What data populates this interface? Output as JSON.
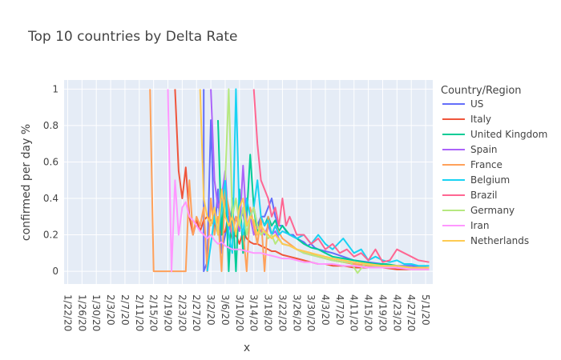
{
  "chart_data": {
    "type": "line",
    "title": "Top 10 countries by Delta Rate",
    "xlabel": "x",
    "ylabel": "confirmed per day %",
    "ylim": [
      -0.07,
      1.05
    ],
    "y_ticks": [
      "0",
      "0.2",
      "0.4",
      "0.6",
      "0.8",
      "1"
    ],
    "y_tick_values": [
      0,
      0.2,
      0.4,
      0.6,
      0.8,
      1
    ],
    "x_ticks": [
      "1/22/20",
      "1/26/20",
      "1/30/20",
      "2/3/20",
      "2/7/20",
      "2/11/20",
      "2/15/20",
      "2/19/20",
      "2/23/20",
      "2/27/20",
      "3/2/20",
      "3/6/20",
      "3/10/20",
      "3/14/20",
      "3/18/20",
      "3/22/20",
      "3/26/20",
      "3/30/20",
      "4/3/20",
      "4/7/20",
      "4/11/20",
      "4/15/20",
      "4/19/20",
      "4/23/20",
      "4/27/20",
      "5/1/20"
    ],
    "x_tick_days": [
      0,
      4,
      8,
      12,
      16,
      20,
      24,
      28,
      32,
      36,
      40,
      44,
      48,
      52,
      56,
      60,
      64,
      68,
      72,
      76,
      80,
      84,
      88,
      92,
      96,
      100
    ],
    "x_start": "1/22/20",
    "x_end": "5/2/20",
    "grid": true,
    "legend_title": "Country/Region",
    "legend_position": "right",
    "series": [
      {
        "name": "US",
        "color": "#636efa",
        "x": [
          "2/29/20",
          "2/29/20",
          "3/1/20",
          "3/2/20",
          "3/3/20",
          "3/4/20",
          "3/5/20",
          "3/6/20",
          "3/7/20",
          "3/8/20",
          "3/9/20",
          "3/10/20",
          "3/11/20",
          "3/12/20",
          "3/13/20",
          "3/14/20",
          "3/15/20",
          "3/16/20",
          "3/17/20",
          "3/18/20",
          "3/19/20",
          "3/20/20",
          "3/21/20",
          "3/22/20",
          "3/23/20",
          "3/24/20",
          "3/25/20",
          "3/26/20",
          "3/27/20",
          "3/28/20",
          "3/29/20",
          "3/30/20",
          "3/31/20",
          "4/1/20",
          "4/3/20",
          "4/5/20",
          "4/8/20",
          "4/11/20",
          "4/15/20",
          "4/19/20",
          "4/23/20",
          "4/27/20",
          "5/2/20"
        ],
        "y": [
          1,
          0,
          0.05,
          0.83,
          0.2,
          0.45,
          0.1,
          0.2,
          0.35,
          0.25,
          0.3,
          0.28,
          0.32,
          0.2,
          0.3,
          0.35,
          0.25,
          0.3,
          0.3,
          0.35,
          0.4,
          0.3,
          0.25,
          0.25,
          0.22,
          0.2,
          0.2,
          0.18,
          0.17,
          0.16,
          0.14,
          0.15,
          0.13,
          0.12,
          0.11,
          0.1,
          0.08,
          0.06,
          0.05,
          0.04,
          0.03,
          0.03,
          0.02
        ]
      },
      {
        "name": "Italy",
        "color": "#ef553b",
        "x": [
          "2/21/20",
          "2/22/20",
          "2/23/20",
          "2/24/20",
          "2/25/20",
          "2/26/20",
          "2/27/20",
          "2/28/20",
          "2/29/20",
          "3/1/20",
          "3/2/20",
          "3/3/20",
          "3/4/20",
          "3/5/20",
          "3/6/20",
          "3/7/20",
          "3/8/20",
          "3/9/20",
          "3/10/20",
          "3/11/20",
          "3/12/20",
          "3/13/20",
          "3/14/20",
          "3/15/20",
          "3/16/20",
          "3/17/20",
          "3/18/20",
          "3/19/20",
          "3/20/20",
          "3/21/20",
          "3/22/20",
          "3/24/20",
          "3/26/20",
          "3/28/20",
          "3/30/20",
          "4/1/20",
          "4/3/20",
          "4/5/20",
          "4/8/20",
          "4/11/20",
          "4/15/20",
          "4/19/20",
          "4/23/20",
          "4/27/20",
          "5/2/20"
        ],
        "y": [
          1,
          0.55,
          0.4,
          0.57,
          0.3,
          0.2,
          0.28,
          0.22,
          0.28,
          0.3,
          0.28,
          0.25,
          0.24,
          0.2,
          0.22,
          0.3,
          0.18,
          0.2,
          0.15,
          0.22,
          0.18,
          0.16,
          0.15,
          0.15,
          0.14,
          0.13,
          0.12,
          0.11,
          0.11,
          0.1,
          0.09,
          0.08,
          0.07,
          0.06,
          0.05,
          0.04,
          0.04,
          0.03,
          0.03,
          0.02,
          0.02,
          0.02,
          0.01,
          0.01,
          0.01
        ]
      },
      {
        "name": "United Kingdom",
        "color": "#00cc96",
        "x": [
          "3/4/20",
          "3/5/20",
          "3/6/20",
          "3/7/20",
          "3/8/20",
          "3/9/20",
          "3/10/20",
          "3/11/20",
          "3/12/20",
          "3/13/20",
          "3/14/20",
          "3/15/20",
          "3/16/20",
          "3/17/20",
          "3/18/20",
          "3/19/20",
          "3/20/20",
          "3/21/20",
          "3/22/20",
          "3/24/20",
          "3/26/20",
          "3/28/20",
          "3/30/20",
          "4/1/20",
          "4/3/20",
          "4/5/20",
          "4/8/20",
          "4/11/20",
          "4/14/20",
          "4/17/20",
          "4/20/20",
          "4/23/20",
          "4/27/20",
          "5/2/20"
        ],
        "y": [
          0.83,
          0.2,
          0.5,
          0,
          0.4,
          0,
          0.45,
          0.1,
          0.3,
          0.64,
          0.35,
          0.2,
          0.3,
          0.25,
          0.3,
          0.25,
          0.28,
          0.22,
          0.25,
          0.2,
          0.18,
          0.15,
          0.13,
          0.12,
          0.1,
          0.08,
          0.07,
          0.06,
          0.05,
          0.04,
          0.04,
          0.03,
          0.02,
          0.02
        ]
      },
      {
        "name": "Spain",
        "color": "#ab63fa",
        "x": [
          "3/2/20",
          "3/3/20",
          "3/4/20",
          "3/5/20",
          "3/6/20",
          "3/7/20",
          "3/8/20",
          "3/9/20",
          "3/10/20",
          "3/11/20",
          "3/12/20",
          "3/13/20",
          "3/14/20",
          "3/15/20",
          "3/16/20",
          "3/17/20",
          "3/18/20",
          "3/19/20",
          "3/20/20",
          "3/21/20",
          "3/22/20",
          "3/24/20",
          "3/26/20",
          "3/28/20",
          "3/30/20",
          "4/1/20",
          "4/3/20",
          "4/5/20",
          "4/8/20",
          "4/11/20",
          "4/15/20",
          "4/19/20",
          "4/23/20",
          "4/27/20",
          "5/2/20"
        ],
        "y": [
          1,
          0.5,
          0.35,
          0.4,
          0.55,
          0.25,
          0.2,
          0.3,
          0.22,
          0.58,
          0.25,
          0.3,
          0.2,
          0.25,
          0.22,
          0.2,
          0.25,
          0.2,
          0.22,
          0.18,
          0.15,
          0.14,
          0.12,
          0.1,
          0.09,
          0.08,
          0.07,
          0.06,
          0.05,
          0.04,
          0.03,
          0.03,
          0.02,
          0.02,
          0.02
        ]
      },
      {
        "name": "France",
        "color": "#ffa15a",
        "x": [
          "2/14/20",
          "2/15/20",
          "2/16/20",
          "2/17/20",
          "2/18/20",
          "2/19/20",
          "2/20/20",
          "2/21/20",
          "2/22/20",
          "2/23/20",
          "2/24/20",
          "2/25/20",
          "2/26/20",
          "2/27/20",
          "2/28/20",
          "2/29/20",
          "3/1/20",
          "3/2/20",
          "3/3/20",
          "3/4/20",
          "3/5/20",
          "3/6/20",
          "3/7/20",
          "3/8/20",
          "3/9/20",
          "3/10/20",
          "3/11/20",
          "3/12/20",
          "3/13/20",
          "3/14/20",
          "3/15/20",
          "3/16/20",
          "3/17/20",
          "3/18/20",
          "3/19/20",
          "3/20/20",
          "3/22/20",
          "3/24/20",
          "3/26/20",
          "3/28/20",
          "3/30/20",
          "4/1/20",
          "4/3/20",
          "4/5/20",
          "4/8/20",
          "4/11/20",
          "4/15/20",
          "4/19/20",
          "4/23/20",
          "4/27/20",
          "5/2/20"
        ],
        "y": [
          1,
          0,
          0,
          0,
          0,
          0,
          0,
          0,
          0,
          0,
          0,
          0.5,
          0.2,
          0.3,
          0.25,
          0.35,
          0,
          0.4,
          0.2,
          0.3,
          0,
          0.45,
          0.35,
          0.2,
          0.3,
          0.25,
          0.22,
          0,
          0.35,
          0.25,
          0.15,
          0.3,
          0,
          0.3,
          0.2,
          0.25,
          0.18,
          0.15,
          0.12,
          0.11,
          0.1,
          0.08,
          0.07,
          0.06,
          0.05,
          0.04,
          0.03,
          0.03,
          0.02,
          0.02,
          0.02
        ]
      },
      {
        "name": "Belgium",
        "color": "#19d3f3",
        "x": [
          "3/1/20",
          "3/2/20",
          "3/3/20",
          "3/4/20",
          "3/5/20",
          "3/6/20",
          "3/7/20",
          "3/8/20",
          "3/9/20",
          "3/10/20",
          "3/11/20",
          "3/12/20",
          "3/13/20",
          "3/14/20",
          "3/15/20",
          "3/16/20",
          "3/17/20",
          "3/18/20",
          "3/19/20",
          "3/20/20",
          "3/21/20",
          "3/22/20",
          "3/24/20",
          "3/26/20",
          "3/28/20",
          "3/30/20",
          "4/1/20",
          "4/3/20",
          "4/5/20",
          "4/8/20",
          "4/11/20",
          "4/13/20",
          "4/15/20",
          "4/17/20",
          "4/19/20",
          "4/21/20",
          "4/23/20",
          "4/25/20",
          "4/27/20",
          "4/29/20",
          "5/2/20"
        ],
        "y": [
          0,
          0.15,
          0.3,
          0.2,
          0.35,
          0.5,
          0.2,
          0.1,
          1,
          0.3,
          0.2,
          0.4,
          0.3,
          0.35,
          0.5,
          0.3,
          0.25,
          0.28,
          0.2,
          0.25,
          0.2,
          0.22,
          0.2,
          0.18,
          0.2,
          0.15,
          0.2,
          0.15,
          0.12,
          0.18,
          0.1,
          0.12,
          0.06,
          0.08,
          0.06,
          0.05,
          0.06,
          0.04,
          0.04,
          0.03,
          0.03
        ]
      },
      {
        "name": "Brazil",
        "color": "#ff6692",
        "x": [
          "3/14/20",
          "3/15/20",
          "3/16/20",
          "3/17/20",
          "3/18/20",
          "3/19/20",
          "3/20/20",
          "3/21/20",
          "3/22/20",
          "3/23/20",
          "3/24/20",
          "3/26/20",
          "3/28/20",
          "3/30/20",
          "4/1/20",
          "4/3/20",
          "4/5/20",
          "4/7/20",
          "4/9/20",
          "4/11/20",
          "4/13/20",
          "4/15/20",
          "4/17/20",
          "4/19/20",
          "4/21/20",
          "4/23/20",
          "4/25/20",
          "4/27/20",
          "4/29/20",
          "5/2/20"
        ],
        "y": [
          1,
          0.7,
          0.5,
          0.45,
          0.4,
          0.3,
          0.35,
          0.25,
          0.4,
          0.25,
          0.3,
          0.2,
          0.2,
          0.15,
          0.18,
          0.12,
          0.15,
          0.1,
          0.12,
          0.08,
          0.1,
          0.06,
          0.12,
          0.05,
          0.06,
          0.12,
          0.1,
          0.08,
          0.06,
          0.05
        ]
      },
      {
        "name": "Germany",
        "color": "#b6e880",
        "x": [
          "3/6/20",
          "3/7/20",
          "3/8/20",
          "3/9/20",
          "3/10/20",
          "3/11/20",
          "3/12/20",
          "3/13/20",
          "3/14/20",
          "3/15/20",
          "3/16/20",
          "3/17/20",
          "3/18/20",
          "3/19/20",
          "3/20/20",
          "3/21/20",
          "3/22/20",
          "3/24/20",
          "3/26/20",
          "3/28/20",
          "3/30/20",
          "4/1/20",
          "4/3/20",
          "4/5/20",
          "4/8/20",
          "4/10/20",
          "4/12/20",
          "4/14/20",
          "4/17/20",
          "4/20/20",
          "4/23/20",
          "4/27/20",
          "5/2/20"
        ],
        "y": [
          0.5,
          1,
          0.3,
          0.4,
          0.25,
          0.35,
          0.2,
          0.3,
          0.35,
          0.25,
          0.2,
          0.22,
          0.18,
          0.2,
          0.15,
          0.18,
          0.15,
          0.14,
          0.12,
          0.1,
          0.09,
          0.08,
          0.07,
          0.06,
          0.05,
          0.05,
          -0.01,
          0.04,
          0.03,
          0.03,
          0.02,
          0.02,
          0.02
        ]
      },
      {
        "name": "Iran",
        "color": "#ff97ff",
        "x": [
          "2/19/20",
          "2/20/20",
          "2/21/20",
          "2/22/20",
          "2/23/20",
          "2/24/20",
          "2/25/20",
          "2/26/20",
          "2/27/20",
          "2/28/20",
          "2/29/20",
          "3/1/20",
          "3/2/20",
          "3/3/20",
          "3/4/20",
          "3/5/20",
          "3/6/20",
          "3/7/20",
          "3/8/20",
          "3/10/20",
          "3/12/20",
          "3/14/20",
          "3/16/20",
          "3/18/20",
          "3/20/20",
          "3/22/20",
          "3/24/20",
          "3/26/20",
          "3/28/20",
          "3/30/20",
          "4/1/20",
          "4/3/20",
          "4/5/20",
          "4/8/20",
          "4/11/20",
          "4/15/20",
          "4/19/20",
          "4/23/20",
          "4/27/20",
          "5/2/20"
        ],
        "y": [
          1,
          0,
          0.5,
          0.2,
          0.35,
          0.38,
          0.3,
          0.28,
          0.25,
          0.22,
          0.2,
          0.18,
          0.2,
          0.17,
          0.15,
          0.16,
          0.14,
          0.13,
          0.12,
          0.12,
          0.11,
          0.1,
          0.1,
          0.09,
          0.08,
          0.07,
          0.07,
          0.06,
          0.05,
          0.05,
          0.04,
          0.04,
          0.04,
          0.03,
          0.03,
          0.02,
          0.02,
          0.02,
          0.01,
          0.01
        ]
      },
      {
        "name": "Netherlands",
        "color": "#fecb52",
        "x": [
          "2/28/20",
          "2/29/20",
          "3/1/20",
          "3/2/20",
          "3/3/20",
          "3/4/20",
          "3/5/20",
          "3/6/20",
          "3/7/20",
          "3/8/20",
          "3/9/20",
          "3/10/20",
          "3/11/20",
          "3/12/20",
          "3/13/20",
          "3/14/20",
          "3/15/20",
          "3/16/20",
          "3/17/20",
          "3/18/20",
          "3/19/20",
          "3/20/20",
          "3/22/20",
          "3/24/20",
          "3/26/20",
          "3/28/20",
          "3/30/20",
          "4/1/20",
          "4/3/20",
          "4/5/20",
          "4/8/20",
          "4/11/20",
          "4/15/20",
          "4/19/20",
          "4/23/20",
          "4/27/20",
          "5/2/20"
        ],
        "y": [
          1,
          0.4,
          0.3,
          0.25,
          0.35,
          0.2,
          0.45,
          0.3,
          0.25,
          0.3,
          0.2,
          0.35,
          0.4,
          0.25,
          0.3,
          0.28,
          0.2,
          0.25,
          0.22,
          0.2,
          0.18,
          0.2,
          0.15,
          0.14,
          0.12,
          0.11,
          0.1,
          0.09,
          0.08,
          0.07,
          0.06,
          0.05,
          0.04,
          0.03,
          0.03,
          0.02,
          0.02
        ]
      }
    ]
  }
}
